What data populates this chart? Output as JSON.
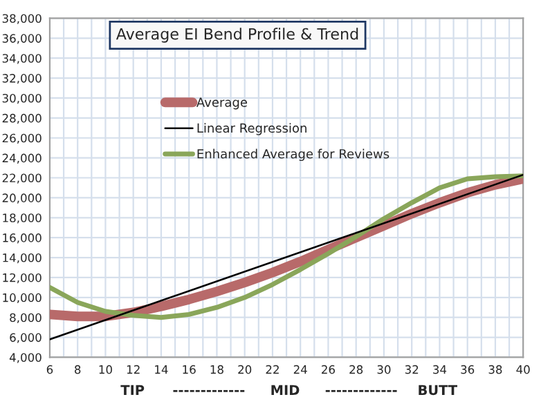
{
  "chart_data": {
    "type": "line",
    "title": "Average EI Bend Profile & Trend",
    "x": [
      6,
      8,
      10,
      12,
      14,
      16,
      18,
      20,
      22,
      24,
      26,
      28,
      30,
      32,
      34,
      36,
      38,
      40
    ],
    "series": [
      {
        "name": "Average",
        "color": "#b86a6a",
        "values": [
          8300,
          8100,
          8100,
          8500,
          9100,
          9800,
          10600,
          11500,
          12500,
          13600,
          14800,
          16000,
          17200,
          18400,
          19500,
          20500,
          21300,
          21900
        ]
      },
      {
        "name": "Linear Regression",
        "color": "#000000",
        "x": [
          6,
          40
        ],
        "values": [
          5800,
          22300
        ]
      },
      {
        "name": "Enhanced Average for Reviews",
        "color": "#8aa65a",
        "values": [
          11000,
          9500,
          8600,
          8200,
          8000,
          8300,
          9000,
          10000,
          11300,
          12800,
          14400,
          16100,
          17900,
          19500,
          21000,
          21900,
          22100,
          22200
        ]
      }
    ],
    "xlim": [
      6,
      40
    ],
    "xticks": [
      6,
      {
        "value": 7,
        "label": null
      },
      8,
      {
        "value": 9,
        "label": null
      },
      10,
      {
        "value": 11,
        "label": null
      },
      12,
      {
        "value": 13,
        "label": null
      },
      14,
      {
        "value": 15,
        "label": null
      },
      16,
      {
        "value": 17,
        "label": null
      },
      18,
      {
        "value": 19,
        "label": null
      },
      20,
      {
        "value": 21,
        "label": null
      },
      22,
      {
        "value": 23,
        "label": null
      },
      24,
      {
        "value": 25,
        "label": null
      },
      26,
      {
        "value": 27,
        "label": null
      },
      28,
      {
        "value": 29,
        "label": null
      },
      30,
      {
        "value": 31,
        "label": null
      },
      32,
      {
        "value": 33,
        "label": null
      },
      34,
      {
        "value": 35,
        "label": null
      },
      36,
      {
        "value": 37,
        "label": null
      },
      38,
      {
        "value": 39,
        "label": null
      },
      40
    ],
    "ylim": [
      4000,
      38000
    ],
    "yticks": [
      {
        "value": 4000,
        "label": "4,000"
      },
      {
        "value": 6000,
        "label": "6,000"
      },
      {
        "value": 8000,
        "label": "8,000"
      },
      {
        "value": 10000,
        "label": "10,000"
      },
      {
        "value": 12000,
        "label": "12,000"
      },
      {
        "value": 14000,
        "label": "14,000"
      },
      {
        "value": 16000,
        "label": "16,000"
      },
      {
        "value": 18000,
        "label": "18,000"
      },
      {
        "value": 20000,
        "label": "20,000"
      },
      {
        "value": 22000,
        "label": "22,000"
      },
      {
        "value": 24000,
        "label": "24,000"
      },
      {
        "value": 26000,
        "label": "26,000"
      },
      {
        "value": 28000,
        "label": "28,000"
      },
      {
        "value": 30000,
        "label": "30,000"
      },
      {
        "value": 32000,
        "label": "32,000"
      },
      {
        "value": 34000,
        "label": "34,000"
      },
      {
        "value": 36000,
        "label": "36,000"
      },
      {
        "value": 38000,
        "label": "38,000"
      }
    ],
    "annotations": [
      "TIP",
      "-------------",
      "MID",
      "-------------",
      "BUTT"
    ],
    "grid": true,
    "legend": "top left",
    "marker": "none",
    "line_style": "solid"
  }
}
